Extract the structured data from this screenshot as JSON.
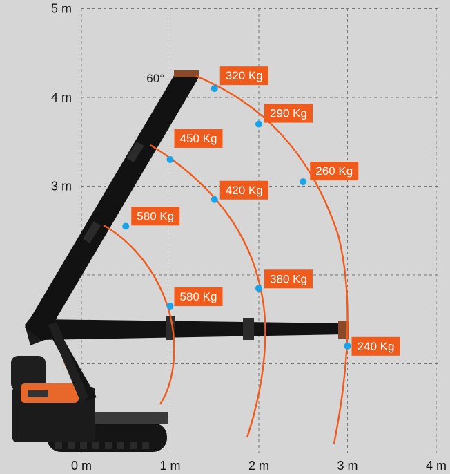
{
  "chart_data": {
    "type": "scatter",
    "title": "",
    "xlabel": "",
    "ylabel": "",
    "xlim": [
      -0.05,
      4
    ],
    "ylim": [
      0,
      5
    ],
    "x_ticks": [
      "0 m",
      "1 m",
      "2 m",
      "3 m",
      "4 m"
    ],
    "y_ticks": [
      "3 m",
      "4 m",
      "5 m"
    ],
    "grid": true,
    "grid_style": "dashed",
    "angle_label": "60°",
    "series": [
      {
        "points": [
          {
            "x": 0.5,
            "y": 2.55,
            "label": "580 Kg"
          },
          {
            "x": 1.0,
            "y": 1.65,
            "label": "580 Kg"
          }
        ]
      },
      {
        "points": [
          {
            "x": 1.0,
            "y": 3.3,
            "label": "450 Kg"
          },
          {
            "x": 1.5,
            "y": 2.85,
            "label": "420 Kg"
          },
          {
            "x": 2.0,
            "y": 1.85,
            "label": "380 Kg"
          }
        ]
      },
      {
        "points": [
          {
            "x": 1.5,
            "y": 4.1,
            "label": "320 Kg"
          },
          {
            "x": 2.0,
            "y": 3.7,
            "label": "290 Kg"
          },
          {
            "x": 2.5,
            "y": 3.05,
            "label": "260 Kg"
          },
          {
            "x": 3.0,
            "y": 1.2,
            "label": "240 Kg"
          }
        ]
      }
    ],
    "colors": {
      "background": "#d6d6d6",
      "grid": "#777777",
      "arc": "#f05a1a",
      "point": "#1aa3e8",
      "label_bg": "#f05a1a",
      "label_text": "#ffffff",
      "machine": "#111111",
      "machine_accent": "#e8672a"
    }
  }
}
